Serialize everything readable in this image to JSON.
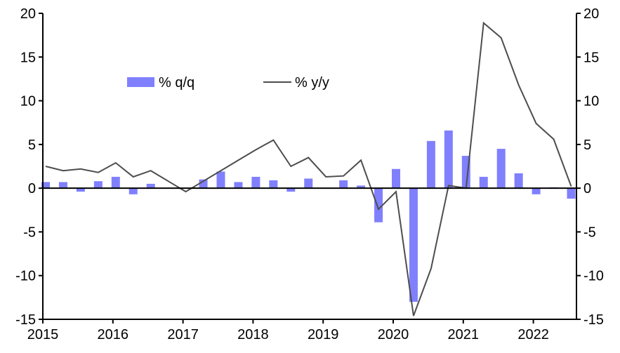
{
  "chart_data": {
    "type": "bar+line",
    "title": "",
    "xlabel": "",
    "ylabel_left": "",
    "ylabel_right": "",
    "ylim": [
      -15,
      20
    ],
    "yticks": [
      -15,
      -10,
      -5,
      0,
      5,
      10,
      15,
      20
    ],
    "ytick_labels": [
      "-15",
      "-10",
      "-5",
      "0",
      "5",
      "10",
      "15",
      "20"
    ],
    "xtick_labels": [
      "2015",
      "2016",
      "2017",
      "2018",
      "2019",
      "2020",
      "2021",
      "2022"
    ],
    "x_start_year": 2015,
    "grid": false,
    "legend_placement": "top-left",
    "series": [
      {
        "name": "% q/q",
        "kind": "bar",
        "color": "#8080ff",
        "values": [
          0.7,
          0.7,
          -0.4,
          0.8,
          1.3,
          -0.7,
          0.5,
          0,
          0,
          1.0,
          1.9,
          0.7,
          1.3,
          0.9,
          -0.4,
          1.1,
          0,
          0.9,
          0.3,
          -3.9,
          2.2,
          -13.0,
          5.4,
          6.6,
          3.7,
          1.3,
          4.5,
          1.7,
          -0.7,
          0.1,
          -1.2
        ]
      },
      {
        "name": "% y/y",
        "kind": "line",
        "color": "#4d4d4d",
        "values": [
          2.5,
          2.0,
          2.2,
          1.8,
          2.9,
          1.3,
          2.0,
          0.8,
          -0.4,
          0.8,
          2.0,
          3.2,
          4.4,
          5.5,
          2.5,
          3.5,
          1.3,
          1.4,
          3.2,
          -2.4,
          -0.4,
          -14.6,
          -9.2,
          0.3,
          0.0,
          18.9,
          17.2,
          11.8,
          7.4,
          5.6,
          0.2
        ]
      }
    ]
  }
}
